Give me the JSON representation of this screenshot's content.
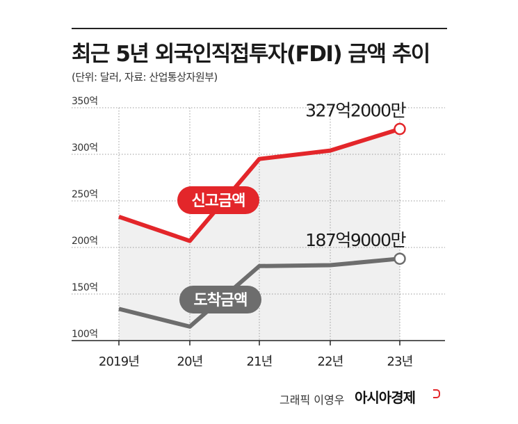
{
  "header": {
    "title": "최근 5년 외국인직접투자(FDI) 금액 추이",
    "subtitle": "(단위: 달러, 자료: 산업통상자원부)"
  },
  "footer": {
    "credit": "그래픽 이영우",
    "brand": "아시아경제"
  },
  "colors": {
    "reported": "#e3262a",
    "arrived": "#6d6d6d",
    "area": "#f0f0f0",
    "grid": "#9a9a9a"
  },
  "chart_data": {
    "type": "line",
    "title": "최근 5년 외국인직접투자(FDI) 금액 추이",
    "categories": [
      "2019년",
      "20년",
      "21년",
      "22년",
      "23년"
    ],
    "ylim": [
      100,
      350
    ],
    "yticks": [
      100,
      150,
      200,
      250,
      300,
      350
    ],
    "ytick_labels": [
      "100억",
      "150억",
      "200억",
      "250억",
      "300억",
      "350억"
    ],
    "grid": true,
    "series": [
      {
        "name": "신고금액",
        "color": "#e3262a",
        "values": [
          233,
          207,
          295,
          304,
          327.2
        ],
        "end_label": "327억2000만"
      },
      {
        "name": "도착금액",
        "color": "#6d6d6d",
        "values": [
          134,
          115,
          180,
          181,
          187.9
        ],
        "end_label": "187억9000만"
      }
    ]
  }
}
